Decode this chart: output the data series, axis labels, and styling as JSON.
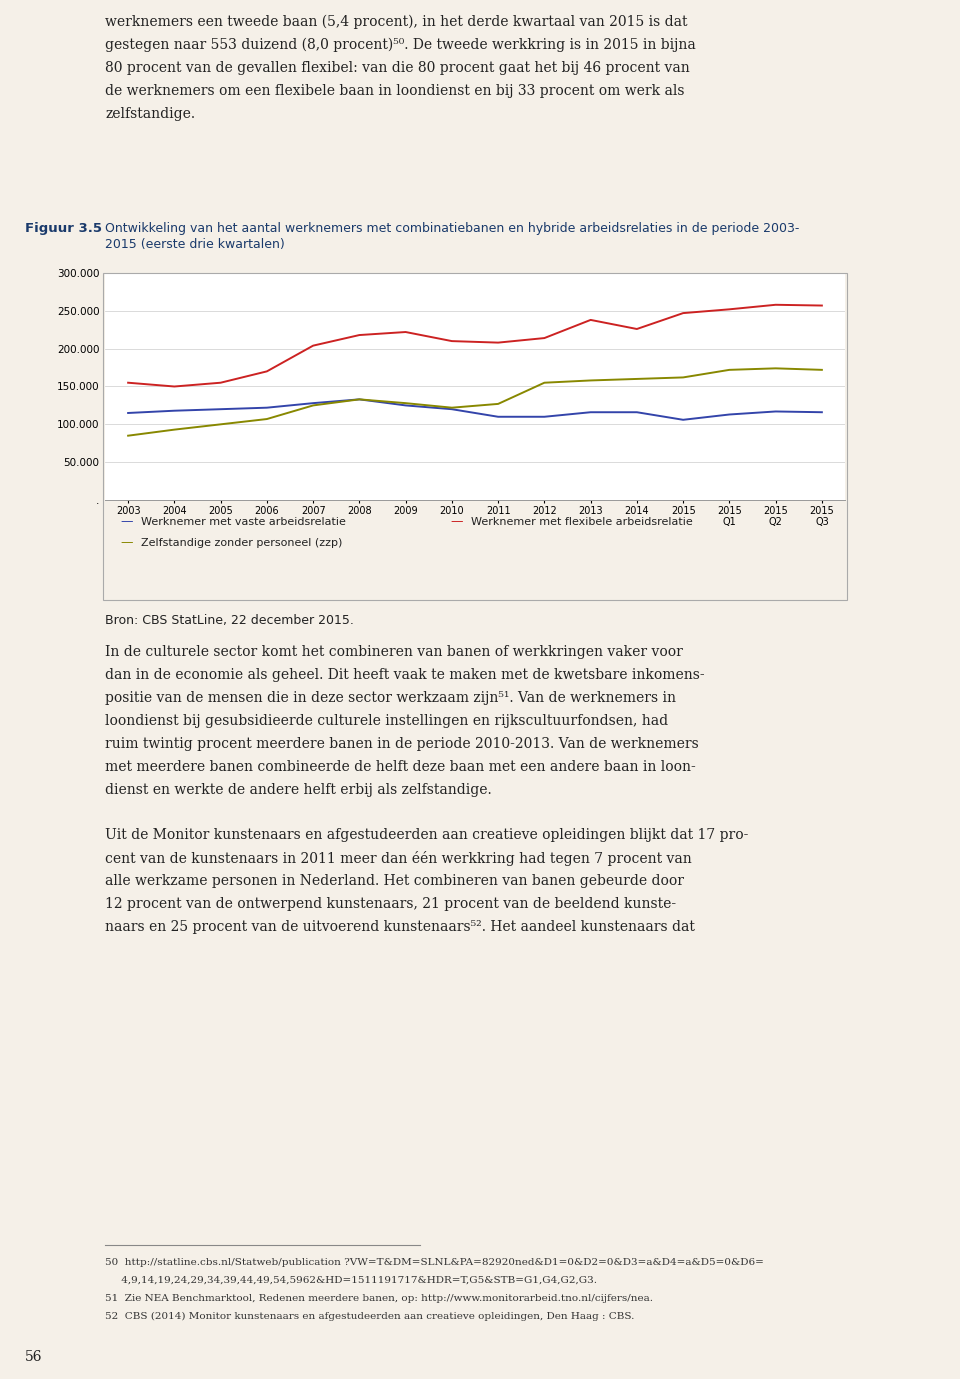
{
  "x_labels": [
    "2003",
    "2004",
    "2005",
    "2006",
    "2007",
    "2008",
    "2009",
    "2010",
    "2011",
    "2012",
    "2013",
    "2014",
    "2015",
    "2015\nQ1",
    "2015\nQ2",
    "2015\nQ3"
  ],
  "vaste": [
    115000,
    118000,
    120000,
    122000,
    128000,
    133000,
    125000,
    120000,
    110000,
    110000,
    116000,
    116000,
    106000,
    113000,
    117000,
    116000
  ],
  "flexibele": [
    155000,
    150000,
    155000,
    170000,
    204000,
    218000,
    222000,
    210000,
    208000,
    214000,
    238000,
    226000,
    247000,
    252000,
    258000,
    257000
  ],
  "zzp": [
    85000,
    93000,
    100000,
    107000,
    125000,
    133000,
    128000,
    122000,
    127000,
    155000,
    158000,
    160000,
    162000,
    172000,
    174000,
    172000
  ],
  "ylim": [
    0,
    300000
  ],
  "yticks": [
    0,
    50000,
    100000,
    150000,
    200000,
    250000,
    300000
  ],
  "color_vaste": "#3344aa",
  "color_flexibele": "#cc2222",
  "color_zzp": "#888800",
  "legend_vaste": "Werknemer met vaste arbeidsrelatie",
  "legend_flexibele": "Werknemer met flexibele arbeidsrelatie",
  "legend_zzp": "Zelfstandige zonder personeel (zzp)",
  "chart_bg": "#ffffff",
  "page_bg": "#f5f0e8",
  "text_color": "#222222",
  "label_color": "#1a3a6b",
  "top_para": [
    "werknemers een tweede baan (5,4 procent), in het derde kwartaal van 2015 is dat",
    "gestegen naar 553 duizend (8,0 procent)⁵⁰. De tweede werkkring is in 2015 in bijna",
    "80 procent van de gevallen flexibel: van die 80 procent gaat het bij 46 procent van",
    "de werknemers om een flexibele baan in loondienst en bij 33 procent om werk als",
    "zelfstandige."
  ],
  "figuur_label": "Figuur 3.5",
  "figuur_title_line1": "Ontwikkeling van het aantal werknemers met combinatiebanen en hybride arbeidsrelaties in de periode 2003-",
  "figuur_title_line2": "2015 (eerste drie kwartalen)",
  "source": "Bron: CBS StatLine, 22 december 2015.",
  "para1": [
    "In de culturele sector komt het combineren van banen of werkkringen vaker voor",
    "dan in de economie als geheel. Dit heeft vaak te maken met de kwetsbare inkomens-",
    "positie van de mensen die in deze sector werkzaam zijn⁵¹. Van de werknemers in",
    "loondienst bij gesubsidieerde culturele instellingen en rijkscultuurfondsen, had",
    "ruim twintig procent meerdere banen in de periode 2010-2013. Van de werknemers",
    "met meerdere banen combineerde de helft deze baan met een andere baan in loon-",
    "dienst en werkte de andere helft erbij als zelfstandige."
  ],
  "para2": [
    "Uit de Monitor kunstenaars en afgestudeerden aan creatieve opleidingen blijkt dat 17 pro-",
    "cent van de kunstenaars in 2011 meer dan één werkkring had tegen 7 procent van",
    "alle werkzame personen in Nederland. Het combineren van banen gebeurde door",
    "12 procent van de ontwerpend kunstenaars, 21 procent van de beeldend kunste-",
    "naars en 25 procent van de uitvoerend kunstenaars⁵². Het aandeel kunstenaars dat"
  ],
  "footnotes": [
    "50  http://statline.cbs.nl/Statweb/publication ?VW=T&DM=SLNL&PA=82920ned&D1=0&D2=0&D3=a&D4=a&D5=0&D6=",
    "     4,9,14,19,24,29,34,39,44,49,54,5962&HD=1511191717&HDR=T,G5&STB=G1,G4,G2,G3.",
    "51  Zie NEA Benchmarktool, Redenen meerdere banen, op: http://www.monitorarbeid.tno.nl/cijfers/nea.",
    "52  CBS (2014) Monitor kunstenaars en afgestudeerden aan creatieve opleidingen, Den Haag : CBS."
  ],
  "page_num": "56"
}
